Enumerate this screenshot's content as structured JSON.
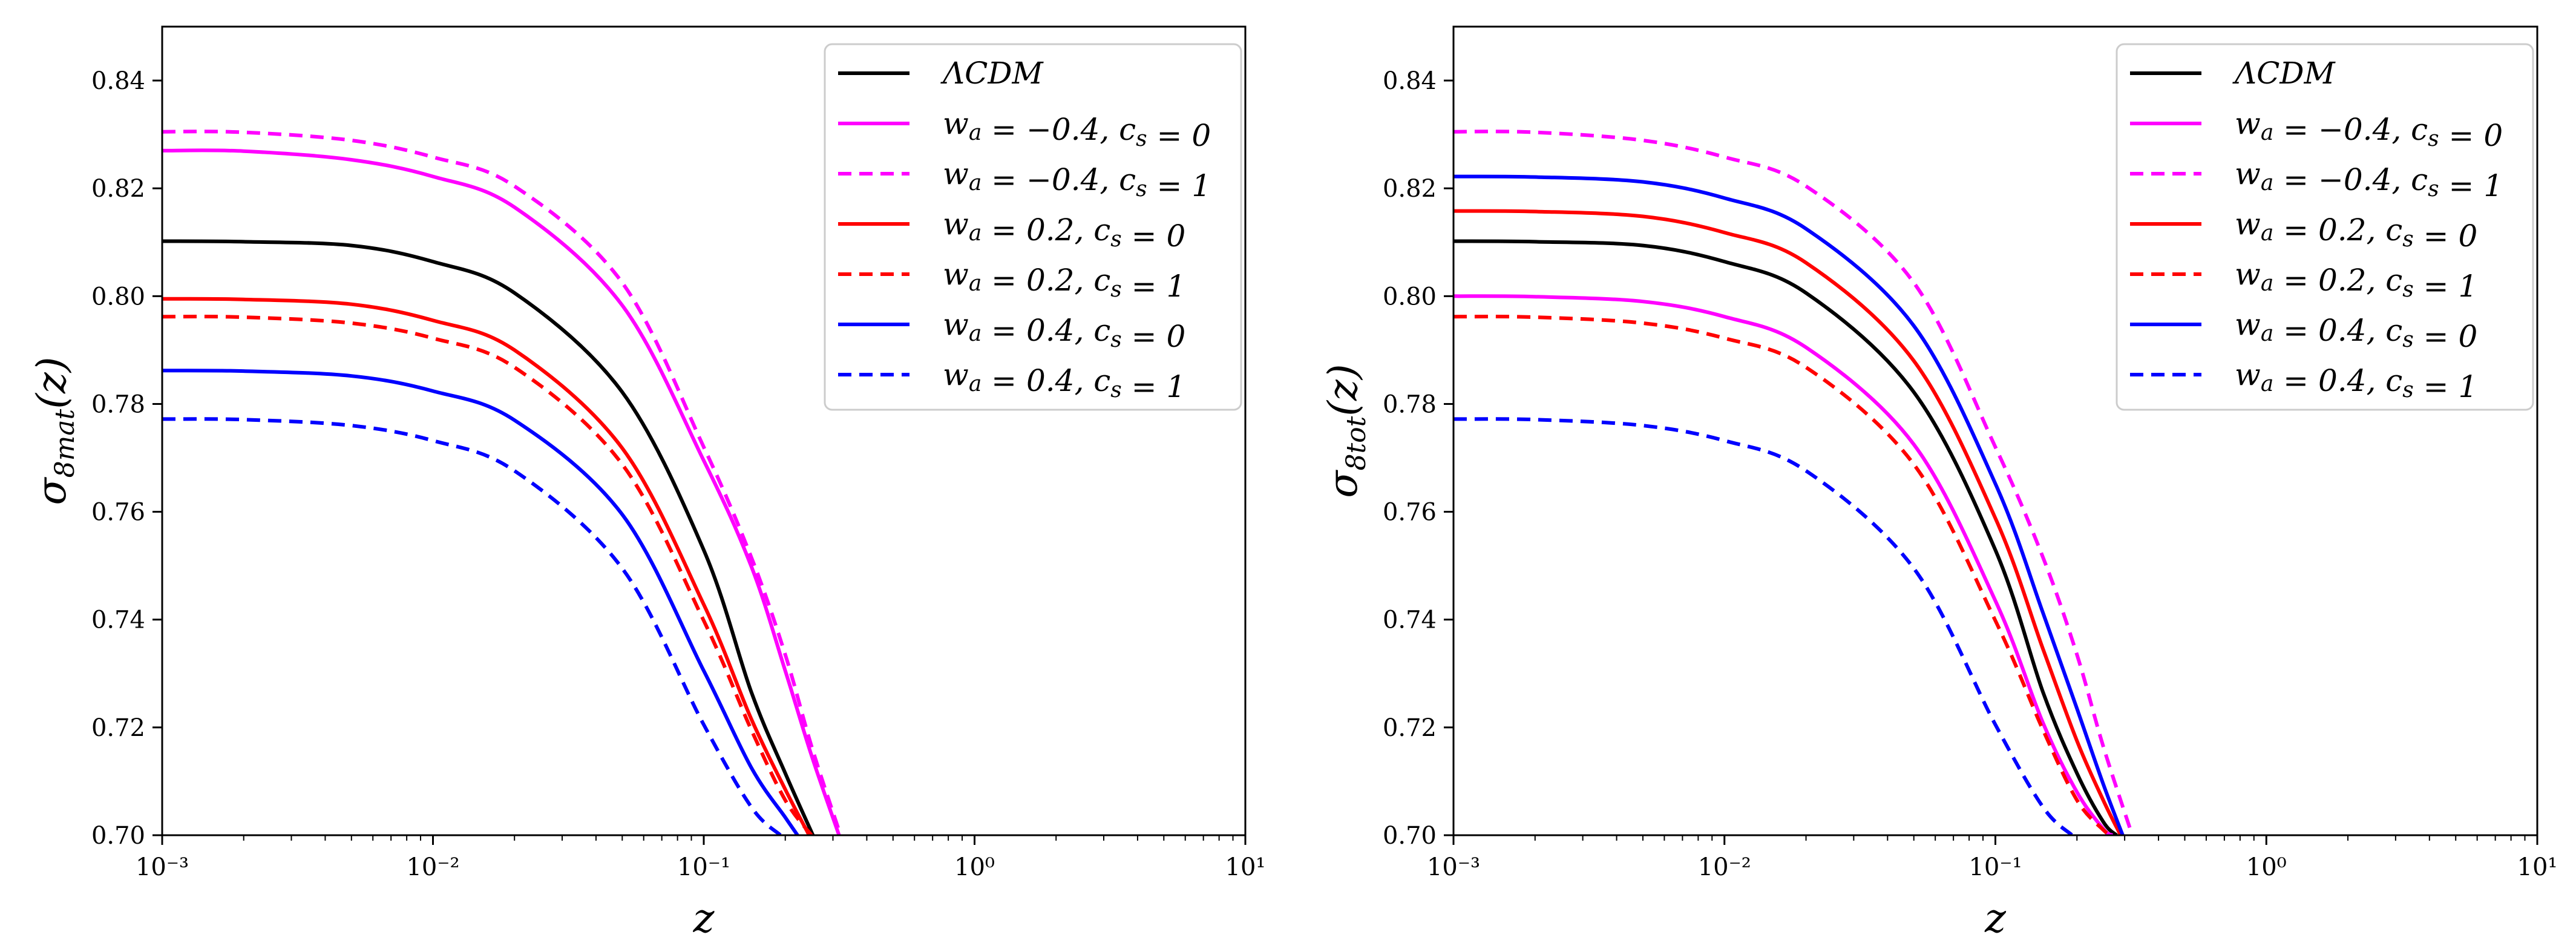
{
  "chart_data": [
    {
      "type": "line",
      "xscale": "log",
      "xlim": [
        0.001,
        10
      ],
      "ylim": [
        0.7,
        0.85
      ],
      "xticks": [
        {
          "value": 0.001,
          "label": "10⁻³"
        },
        {
          "value": 0.01,
          "label": "10⁻²"
        },
        {
          "value": 0.1,
          "label": "10⁻¹"
        },
        {
          "value": 1,
          "label": "10⁰"
        },
        {
          "value": 10,
          "label": "10¹"
        }
      ],
      "yticks": [
        {
          "value": 0.7,
          "label": "0.70"
        },
        {
          "value": 0.72,
          "label": "0.72"
        },
        {
          "value": 0.74,
          "label": "0.74"
        },
        {
          "value": 0.76,
          "label": "0.76"
        },
        {
          "value": 0.78,
          "label": "0.78"
        },
        {
          "value": 0.8,
          "label": "0.80"
        },
        {
          "value": 0.82,
          "label": "0.82"
        },
        {
          "value": 0.84,
          "label": "0.84"
        }
      ],
      "xlabel": "z",
      "ylabel": "σ8mat(z)",
      "legend_position": "top-right",
      "series": [
        {
          "name": "ΛCDM",
          "color": "#000000",
          "dash": "solid",
          "z": [
            0.001,
            0.002,
            0.005,
            0.01,
            0.02,
            0.05,
            0.1,
            0.15,
            0.2,
            0.253
          ],
          "values": [
            0.8102,
            0.8101,
            0.8094,
            0.8064,
            0.8006,
            0.7822,
            0.7529,
            0.7265,
            0.7115,
            0.7
          ]
        },
        {
          "name": "w_a = −0.4, c_s = 0",
          "color": "#ff00ff",
          "dash": "solid",
          "z": [
            0.001,
            0.002,
            0.005,
            0.01,
            0.02,
            0.05,
            0.1,
            0.15,
            0.2,
            0.25,
            0.316
          ],
          "values": [
            0.827,
            0.8269,
            0.8253,
            0.8222,
            0.8165,
            0.7983,
            0.7695,
            0.7498,
            0.7305,
            0.7148,
            0.7
          ]
        },
        {
          "name": "w_a = −0.4, c_s = 1",
          "color": "#ff00ff",
          "dash": "dashed",
          "z": [
            0.001,
            0.002,
            0.005,
            0.01,
            0.02,
            0.05,
            0.1,
            0.15,
            0.2,
            0.25,
            0.32
          ],
          "values": [
            0.8305,
            0.8304,
            0.8289,
            0.8258,
            0.8204,
            0.8025,
            0.772,
            0.7515,
            0.7335,
            0.7165,
            0.7
          ]
        },
        {
          "name": "w_a = 0.2, c_s = 0",
          "color": "#ff0000",
          "dash": "solid",
          "z": [
            0.001,
            0.002,
            0.005,
            0.01,
            0.02,
            0.05,
            0.1,
            0.15,
            0.2,
            0.245
          ],
          "values": [
            0.7995,
            0.7994,
            0.7985,
            0.7955,
            0.79,
            0.7718,
            0.7428,
            0.7215,
            0.7085,
            0.7
          ]
        },
        {
          "name": "w_a = 0.2, c_s = 1",
          "color": "#ff0000",
          "dash": "dashed",
          "z": [
            0.001,
            0.002,
            0.005,
            0.01,
            0.02,
            0.05,
            0.1,
            0.15,
            0.2,
            0.25
          ],
          "values": [
            0.7962,
            0.7961,
            0.795,
            0.7922,
            0.7868,
            0.7688,
            0.7398,
            0.7195,
            0.7065,
            0.7
          ]
        },
        {
          "name": "w_a = 0.4, c_s = 0",
          "color": "#0000ff",
          "dash": "solid",
          "z": [
            0.001,
            0.002,
            0.005,
            0.01,
            0.02,
            0.05,
            0.1,
            0.15,
            0.2,
            0.222
          ],
          "values": [
            0.7862,
            0.7861,
            0.7852,
            0.7824,
            0.777,
            0.7595,
            0.7305,
            0.7125,
            0.7033,
            0.7
          ]
        },
        {
          "name": "w_a = 0.4, c_s = 1",
          "color": "#0000ff",
          "dash": "dashed",
          "z": [
            0.001,
            0.002,
            0.005,
            0.01,
            0.02,
            0.05,
            0.1,
            0.15,
            0.192
          ],
          "values": [
            0.7772,
            0.7771,
            0.776,
            0.7732,
            0.7676,
            0.7495,
            0.7205,
            0.7052,
            0.7
          ]
        }
      ]
    },
    {
      "type": "line",
      "xscale": "log",
      "xlim": [
        0.001,
        10
      ],
      "ylim": [
        0.7,
        0.85
      ],
      "xticks": [
        {
          "value": 0.001,
          "label": "10⁻³"
        },
        {
          "value": 0.01,
          "label": "10⁻²"
        },
        {
          "value": 0.1,
          "label": "10⁻¹"
        },
        {
          "value": 1,
          "label": "10⁰"
        },
        {
          "value": 10,
          "label": "10¹"
        }
      ],
      "yticks": [
        {
          "value": 0.7,
          "label": "0.70"
        },
        {
          "value": 0.72,
          "label": "0.72"
        },
        {
          "value": 0.74,
          "label": "0.74"
        },
        {
          "value": 0.76,
          "label": "0.76"
        },
        {
          "value": 0.78,
          "label": "0.78"
        },
        {
          "value": 0.8,
          "label": "0.80"
        },
        {
          "value": 0.82,
          "label": "0.82"
        },
        {
          "value": 0.84,
          "label": "0.84"
        }
      ],
      "xlabel": "z",
      "ylabel": "σ8tot(z)",
      "legend_position": "top-right",
      "series": [
        {
          "name": "ΛCDM",
          "color": "#000000",
          "dash": "solid",
          "z": [
            0.001,
            0.002,
            0.005,
            0.01,
            0.02,
            0.05,
            0.1,
            0.15,
            0.2,
            0.25,
            0.28
          ],
          "values": [
            0.8102,
            0.8101,
            0.8094,
            0.8064,
            0.8006,
            0.7822,
            0.7529,
            0.7265,
            0.7115,
            0.7025,
            0.7
          ]
        },
        {
          "name": "w_a = −0.4, c_s = 0",
          "color": "#ff00ff",
          "dash": "solid",
          "z": [
            0.001,
            0.002,
            0.005,
            0.01,
            0.02,
            0.05,
            0.1,
            0.15,
            0.2,
            0.25,
            0.27
          ],
          "values": [
            0.8,
            0.7999,
            0.799,
            0.7962,
            0.7905,
            0.7725,
            0.7435,
            0.7208,
            0.708,
            0.7012,
            0.7
          ]
        },
        {
          "name": "w_a = −0.4, c_s = 1",
          "color": "#ff00ff",
          "dash": "dashed",
          "z": [
            0.001,
            0.002,
            0.005,
            0.01,
            0.02,
            0.05,
            0.1,
            0.15,
            0.2,
            0.25,
            0.32
          ],
          "values": [
            0.8305,
            0.8304,
            0.8289,
            0.8258,
            0.8204,
            0.8025,
            0.772,
            0.7515,
            0.7335,
            0.7165,
            0.7
          ]
        },
        {
          "name": "w_a = 0.2, c_s = 0",
          "color": "#ff0000",
          "dash": "solid",
          "z": [
            0.001,
            0.002,
            0.005,
            0.01,
            0.02,
            0.05,
            0.1,
            0.15,
            0.2,
            0.25,
            0.29
          ],
          "values": [
            0.8158,
            0.8157,
            0.8148,
            0.8118,
            0.8062,
            0.788,
            0.7588,
            0.7345,
            0.7175,
            0.7065,
            0.7
          ]
        },
        {
          "name": "w_a = 0.2, c_s = 1",
          "color": "#ff0000",
          "dash": "dashed",
          "z": [
            0.001,
            0.002,
            0.005,
            0.01,
            0.02,
            0.05,
            0.1,
            0.15,
            0.2,
            0.25,
            0.27
          ],
          "values": [
            0.7962,
            0.7961,
            0.795,
            0.7922,
            0.7868,
            0.7688,
            0.7398,
            0.7195,
            0.7065,
            0.701,
            0.7
          ]
        },
        {
          "name": "w_a = 0.4, c_s = 0",
          "color": "#0000ff",
          "dash": "solid",
          "z": [
            0.001,
            0.002,
            0.005,
            0.01,
            0.02,
            0.05,
            0.1,
            0.15,
            0.2,
            0.25,
            0.295
          ],
          "values": [
            0.8222,
            0.8221,
            0.8212,
            0.8182,
            0.8125,
            0.7945,
            0.7652,
            0.7412,
            0.7235,
            0.7095,
            0.7
          ]
        },
        {
          "name": "w_a = 0.4, c_s = 1",
          "color": "#0000ff",
          "dash": "dashed",
          "z": [
            0.001,
            0.002,
            0.005,
            0.01,
            0.02,
            0.05,
            0.1,
            0.15,
            0.192
          ],
          "values": [
            0.7772,
            0.7771,
            0.776,
            0.7732,
            0.7676,
            0.7495,
            0.7205,
            0.7052,
            0.7
          ]
        }
      ]
    }
  ]
}
